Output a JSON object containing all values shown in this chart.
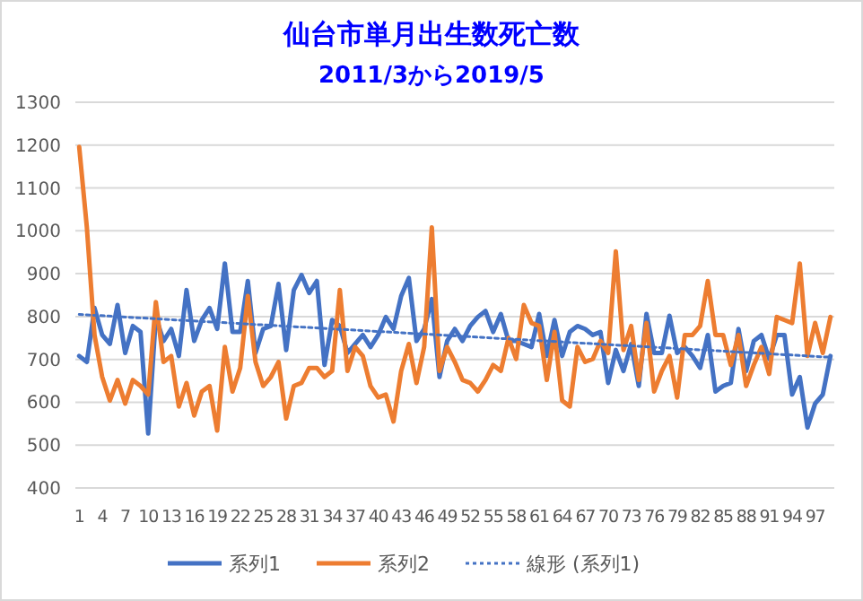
{
  "chart_data": {
    "type": "line",
    "title": "仙台市単月出生数死亡数",
    "subtitle": "2011/3から2019/5",
    "x": [
      1,
      2,
      3,
      4,
      5,
      6,
      7,
      8,
      9,
      10,
      11,
      12,
      13,
      14,
      15,
      16,
      17,
      18,
      19,
      20,
      21,
      22,
      23,
      24,
      25,
      26,
      27,
      28,
      29,
      30,
      31,
      32,
      33,
      34,
      35,
      36,
      37,
      38,
      39,
      40,
      41,
      42,
      43,
      44,
      45,
      46,
      47,
      48,
      49,
      50,
      51,
      52,
      53,
      54,
      55,
      56,
      57,
      58,
      59,
      60,
      61,
      62,
      63,
      64,
      65,
      66,
      67,
      68,
      69,
      70,
      71,
      72,
      73,
      74,
      75,
      76,
      77,
      78,
      79,
      80,
      81,
      82,
      83,
      84,
      85,
      86,
      87,
      88,
      89,
      90,
      91,
      92,
      93,
      94,
      95,
      96,
      97,
      98,
      99
    ],
    "xlim": [
      0.5,
      99.5
    ],
    "xticks": [
      1,
      4,
      7,
      10,
      13,
      16,
      19,
      22,
      25,
      28,
      31,
      34,
      37,
      40,
      43,
      46,
      49,
      52,
      55,
      58,
      61,
      64,
      67,
      70,
      73,
      76,
      79,
      82,
      85,
      88,
      91,
      94,
      97
    ],
    "ylim": [
      400,
      1300
    ],
    "yticks": [
      400,
      500,
      600,
      700,
      800,
      900,
      1000,
      1100,
      1200,
      1300
    ],
    "grid": "y",
    "legend": "bottom",
    "series": [
      {
        "name": "系列1",
        "color": "#4472c4",
        "values": [
          708,
          694,
          820,
          757,
          736,
          827,
          715,
          778,
          764,
          527,
          799,
          743,
          771,
          708,
          862,
          743,
          792,
          820,
          771,
          924,
          764,
          764,
          883,
          715,
          771,
          778,
          876,
          722,
          862,
          897,
          855,
          883,
          687,
          792,
          778,
          715,
          736,
          757,
          729,
          757,
          799,
          771,
          848,
          890,
          743,
          771,
          841,
          659,
          743,
          771,
          743,
          778,
          799,
          813,
          764,
          806,
          743,
          743,
          736,
          729,
          806,
          708,
          792,
          708,
          764,
          778,
          771,
          757,
          764,
          645,
          722,
          673,
          736,
          638,
          806,
          715,
          715,
          802,
          715,
          729,
          708,
          680,
          757,
          625,
          638,
          645,
          771,
          673,
          743,
          757,
          701,
          757,
          757,
          618,
          659,
          541,
          597,
          618,
          708
        ]
      },
      {
        "name": "系列2",
        "color": "#ed7d31",
        "values": [
          1196,
          1008,
          757,
          659,
          604,
          652,
          597,
          652,
          638,
          618,
          834,
          694,
          708,
          590,
          645,
          569,
          625,
          638,
          534,
          729,
          625,
          680,
          848,
          694,
          638,
          659,
          694,
          562,
          638,
          645,
          680,
          680,
          659,
          673,
          862,
          673,
          729,
          708,
          638,
          611,
          618,
          555,
          673,
          736,
          645,
          729,
          1008,
          673,
          729,
          694,
          652,
          645,
          625,
          652,
          687,
          673,
          750,
          701,
          827,
          785,
          778,
          652,
          764,
          604,
          590,
          729,
          694,
          701,
          743,
          715,
          952,
          722,
          778,
          652,
          785,
          625,
          673,
          708,
          611,
          757,
          757,
          778,
          883,
          757,
          757,
          687,
          757,
          638,
          687,
          729,
          666,
          799,
          792,
          785,
          924,
          708,
          785,
          715,
          799
        ]
      },
      {
        "name": "線形 (系列1)",
        "color": "#4472c4",
        "line_style": "dotted",
        "x": [
          1,
          99
        ],
        "values": [
          805,
          705
        ]
      }
    ]
  }
}
